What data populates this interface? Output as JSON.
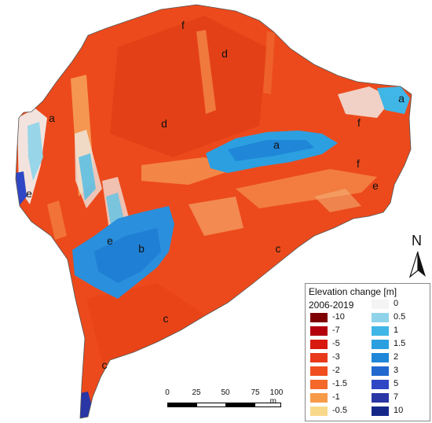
{
  "region_labels": [
    {
      "id": "a1",
      "text": "a"
    },
    {
      "id": "a2",
      "text": "a"
    },
    {
      "id": "a3",
      "text": "a"
    },
    {
      "id": "b1",
      "text": "b"
    },
    {
      "id": "c1",
      "text": "c"
    },
    {
      "id": "c2",
      "text": "c"
    },
    {
      "id": "c3",
      "text": "c"
    },
    {
      "id": "d1",
      "text": "d"
    },
    {
      "id": "d2",
      "text": "d"
    },
    {
      "id": "e1",
      "text": "e"
    },
    {
      "id": "e2",
      "text": "e"
    },
    {
      "id": "e3",
      "text": "e"
    },
    {
      "id": "f1",
      "text": "f"
    },
    {
      "id": "f2",
      "text": "f"
    },
    {
      "id": "f3",
      "text": "f"
    }
  ],
  "north": {
    "letter": "N"
  },
  "scale": {
    "ticks": [
      "0",
      "25",
      "50",
      "75",
      "100 m"
    ]
  },
  "legend": {
    "title": "Elevation change [m]",
    "period": "2006-2019",
    "negative": [
      {
        "label": "-10",
        "color": "#7f0000"
      },
      {
        "label": "-7",
        "color": "#b3000c"
      },
      {
        "label": "-5",
        "color": "#d7190f"
      },
      {
        "label": "-3",
        "color": "#e8391a"
      },
      {
        "label": "-2",
        "color": "#f04e1e"
      },
      {
        "label": "-1.5",
        "color": "#f4682a"
      },
      {
        "label": "-1",
        "color": "#f79a48"
      },
      {
        "label": "-0.5",
        "color": "#f8d98a"
      }
    ],
    "positive": [
      {
        "label": "0",
        "color": "#f4f4f4"
      },
      {
        "label": "0.5",
        "color": "#8fd3ea"
      },
      {
        "label": "1",
        "color": "#3fb6e6"
      },
      {
        "label": "1.5",
        "color": "#2c9fe0"
      },
      {
        "label": "2",
        "color": "#1f86d8"
      },
      {
        "label": "3",
        "color": "#2168cf"
      },
      {
        "label": "5",
        "color": "#2f47c4"
      },
      {
        "label": "7",
        "color": "#2a35a6"
      },
      {
        "label": "10",
        "color": "#15288a"
      }
    ]
  }
}
